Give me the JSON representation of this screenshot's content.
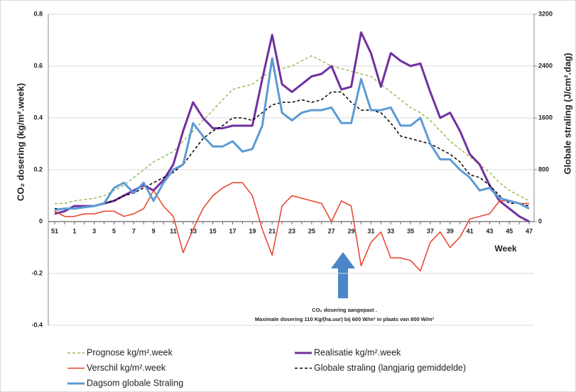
{
  "chart_data": {
    "type": "line",
    "y_label": "CO₂ dosering (kg/m².week)",
    "y2_label": "Globale straling (J/cm².dag)",
    "x_label": "Week",
    "annotation": [
      "CO₂ dosering aangepast .",
      "Maximale dosering 110 Kg/(ha.uur) bij 600 W/m² in plaats van 800 W/m²"
    ],
    "categories": [
      "51",
      null,
      "1",
      null,
      "3",
      null,
      "5",
      null,
      "7",
      null,
      "9",
      null,
      "11",
      null,
      "13",
      null,
      "15",
      null,
      "17",
      null,
      "19",
      null,
      "21",
      null,
      "23",
      null,
      "25",
      null,
      "27",
      null,
      "29",
      null,
      "31",
      null,
      "33",
      null,
      "35",
      null,
      "37",
      null,
      "39",
      null,
      "41",
      null,
      "43",
      null,
      "45",
      null,
      "47"
    ],
    "ylim": [
      -0.4,
      0.8
    ],
    "yticks": [
      -0.4,
      -0.2,
      0,
      0.2,
      0.4,
      0.6,
      0.8
    ],
    "y2lim": [
      -1600,
      3200
    ],
    "y2ticks": [
      0,
      800,
      1600,
      2400,
      3200
    ],
    "grid": true,
    "series": [
      {
        "name": "Prognose kg/m².week",
        "color": "#9bbb59",
        "dashed": true,
        "line_width": 1.5,
        "values": [
          0.07,
          0.07,
          0.08,
          0.085,
          0.09,
          0.1,
          0.12,
          0.14,
          0.17,
          0.2,
          0.23,
          0.25,
          0.27,
          0.31,
          0.35,
          0.39,
          0.43,
          0.47,
          0.51,
          0.52,
          0.53,
          0.56,
          0.58,
          0.59,
          0.6,
          0.62,
          0.64,
          0.62,
          0.6,
          0.59,
          0.58,
          0.57,
          0.56,
          0.53,
          0.5,
          0.47,
          0.44,
          0.42,
          0.39,
          0.35,
          0.31,
          0.28,
          0.25,
          0.22,
          0.19,
          0.15,
          0.12,
          0.1,
          0.08
        ]
      },
      {
        "name": "Realisatie kg/m².week",
        "color": "#7030a0",
        "dashed": false,
        "line_width": 3,
        "values": [
          0.03,
          0.04,
          0.06,
          0.06,
          0.06,
          0.07,
          0.08,
          0.1,
          0.12,
          0.14,
          0.12,
          0.16,
          0.22,
          0.35,
          0.46,
          0.4,
          0.36,
          0.36,
          0.37,
          0.37,
          0.37,
          0.55,
          0.72,
          0.53,
          0.5,
          0.53,
          0.56,
          0.57,
          0.6,
          0.51,
          0.52,
          0.73,
          0.65,
          0.52,
          0.65,
          0.62,
          0.6,
          0.61,
          0.5,
          0.4,
          0.42,
          0.35,
          0.26,
          0.22,
          0.14,
          0.08,
          0.05,
          0.02,
          0.0
        ]
      },
      {
        "name": "Verschil kg/m².week",
        "color": "#e8402a",
        "dashed": false,
        "line_width": 1.5,
        "values": [
          0.04,
          0.02,
          0.02,
          0.03,
          0.03,
          0.04,
          0.04,
          0.02,
          0.03,
          0.05,
          0.12,
          0.06,
          0.02,
          -0.12,
          -0.03,
          0.05,
          0.1,
          0.13,
          0.15,
          0.15,
          0.1,
          -0.03,
          -0.13,
          0.06,
          0.1,
          0.09,
          0.08,
          0.07,
          0.0,
          0.08,
          0.06,
          -0.17,
          -0.08,
          -0.04,
          -0.14,
          -0.14,
          -0.15,
          -0.19,
          -0.08,
          -0.04,
          -0.1,
          -0.06,
          0.01,
          0.02,
          0.03,
          0.08,
          0.08,
          0.07,
          0.07
        ]
      },
      {
        "name": "Globale straling (langjarig gemiddelde)",
        "color": "#000000",
        "dashed": true,
        "line_width": 1.5,
        "axis": "y2",
        "values": [
          200,
          200,
          200,
          220,
          240,
          280,
          320,
          400,
          440,
          520,
          600,
          680,
          760,
          880,
          1080,
          1280,
          1400,
          1480,
          1600,
          1600,
          1560,
          1680,
          1800,
          1840,
          1840,
          1880,
          1840,
          1880,
          2000,
          2000,
          1840,
          1720,
          1720,
          1680,
          1520,
          1320,
          1280,
          1240,
          1200,
          1120,
          1040,
          920,
          720,
          680,
          560,
          400,
          280,
          280,
          240
        ]
      },
      {
        "name": "Dagsom globale Straling",
        "color": "#5b9bd5",
        "dashed": false,
        "line_width": 3,
        "axis": "y2",
        "values": [
          180,
          200,
          200,
          220,
          240,
          280,
          520,
          600,
          440,
          600,
          320,
          600,
          800,
          880,
          1520,
          1320,
          1160,
          1160,
          1240,
          1080,
          1120,
          1480,
          2520,
          1680,
          1560,
          1680,
          1720,
          1720,
          1760,
          1520,
          1520,
          2200,
          1720,
          1720,
          1760,
          1480,
          1480,
          1600,
          1200,
          960,
          960,
          800,
          680,
          480,
          520,
          360,
          320,
          280,
          200
        ]
      }
    ]
  }
}
